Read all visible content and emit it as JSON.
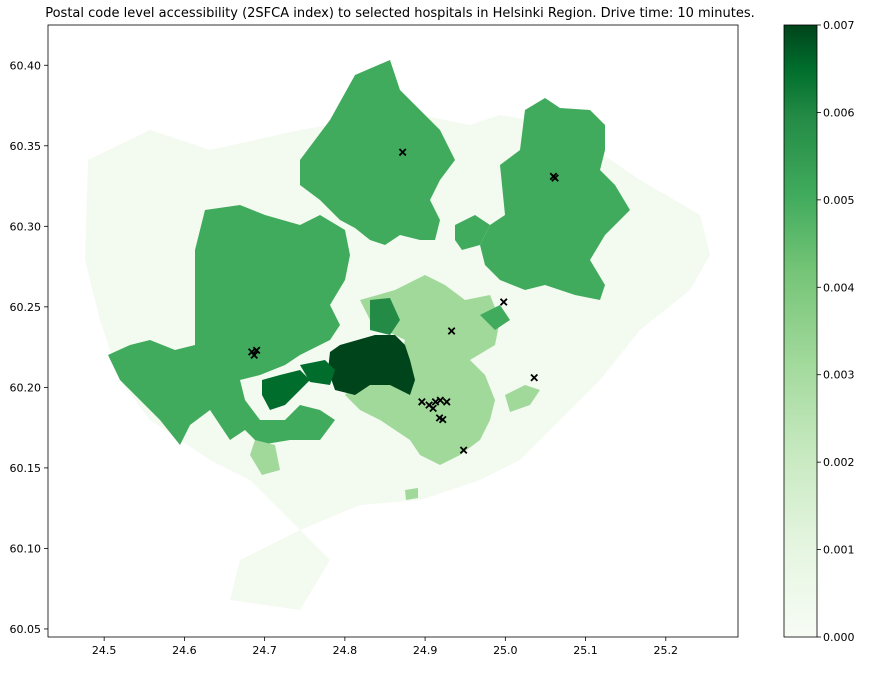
{
  "title": "Postal code level accessibility (2SFCA index) to selected hospitals in Helsinki Region. Drive time: 10 minutes.",
  "chart_data": {
    "type": "choropleth map",
    "title": "Postal code level accessibility (2SFCA index) to selected hospitals in Helsinki Region. Drive time: 10 minutes.",
    "xlabel": "",
    "ylabel": "",
    "xlim": [
      24.43,
      25.29
    ],
    "ylim": [
      60.045,
      60.425
    ],
    "x_ticks": [
      "24.5",
      "24.6",
      "24.7",
      "24.8",
      "24.9",
      "25.0",
      "25.1",
      "25.2"
    ],
    "y_ticks": [
      "60.05",
      "60.10",
      "60.15",
      "60.20",
      "60.25",
      "60.30",
      "60.35",
      "60.40"
    ],
    "colormap": "Greens",
    "colors": {
      "low": "#f7fcf5",
      "high": "#00441b"
    },
    "colorbar": {
      "range": [
        0.0,
        0.007
      ],
      "ticks": [
        "0.000",
        "0.001",
        "0.002",
        "0.003",
        "0.004",
        "0.005",
        "0.006",
        "0.007"
      ]
    },
    "hospitals_marker": "x",
    "hospitals": [
      {
        "lon": 24.872,
        "lat": 60.346
      },
      {
        "lon": 25.06,
        "lat": 60.331
      },
      {
        "lon": 25.062,
        "lat": 60.33
      },
      {
        "lon": 24.998,
        "lat": 60.253
      },
      {
        "lon": 24.933,
        "lat": 60.235
      },
      {
        "lon": 24.684,
        "lat": 60.222
      },
      {
        "lon": 24.687,
        "lat": 60.22
      },
      {
        "lon": 24.69,
        "lat": 60.223
      },
      {
        "lon": 25.036,
        "lat": 60.206
      },
      {
        "lon": 24.896,
        "lat": 60.191
      },
      {
        "lon": 24.905,
        "lat": 60.189
      },
      {
        "lon": 24.91,
        "lat": 60.187
      },
      {
        "lon": 24.913,
        "lat": 60.191
      },
      {
        "lon": 24.919,
        "lat": 60.192
      },
      {
        "lon": 24.927,
        "lat": 60.191
      },
      {
        "lon": 24.918,
        "lat": 60.181
      },
      {
        "lon": 24.922,
        "lat": 60.18
      },
      {
        "lon": 24.948,
        "lat": 60.161
      }
    ]
  }
}
